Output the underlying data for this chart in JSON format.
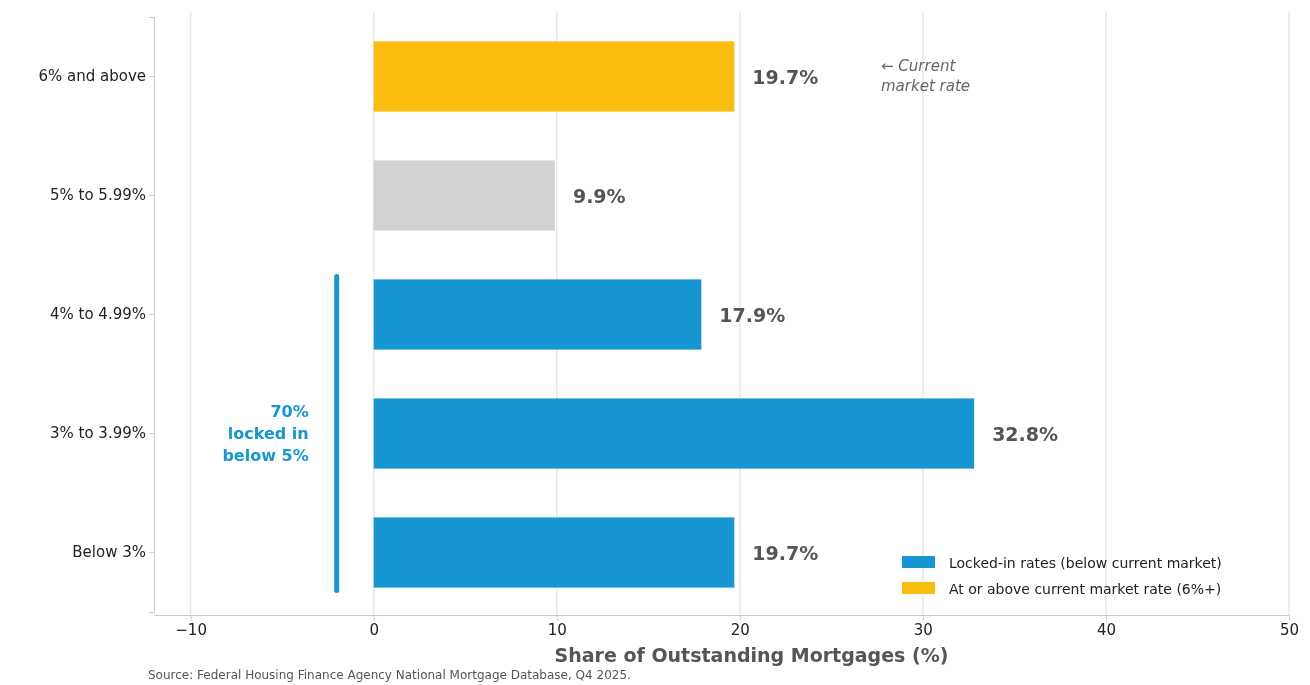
{
  "chart_data": {
    "type": "bar",
    "orientation": "horizontal",
    "xlabel": "Share of Outstanding Mortgages (%)",
    "categories": [
      "6% and above",
      "5% to 5.99%",
      "4% to 4.99%",
      "3% to 3.99%",
      "Below 3%"
    ],
    "series": [
      {
        "name": "Locked-in rates (below current market)",
        "color": "#1696d2",
        "values": [
          null,
          null,
          17.9,
          32.8,
          19.7
        ],
        "value_labels": [
          null,
          null,
          "17.9%",
          "32.8%",
          "19.7%"
        ]
      },
      {
        "name": "At or above current market rate (6%+)",
        "color": "#fbbe10",
        "values": [
          19.7,
          null,
          null,
          null,
          null
        ],
        "value_labels": [
          "19.7%",
          null,
          null,
          null,
          null
        ]
      },
      {
        "color": "#d2d2d2",
        "values": [
          null,
          9.9,
          null,
          null,
          null
        ],
        "value_labels": [
          null,
          "9.9%",
          null,
          null,
          null
        ]
      }
    ],
    "xlim": [
      -12,
      50
    ],
    "xticks": [
      -10,
      0,
      10,
      20,
      30,
      40,
      50
    ],
    "grid": "x",
    "legend": "bottom right",
    "annotations": [
      "← Current\nmarket rate",
      "70%\nlocked in\nbelow 5%",
      "Source: Federal Housing Finance Agency National Mortgage Database, Q4 2025."
    ]
  }
}
